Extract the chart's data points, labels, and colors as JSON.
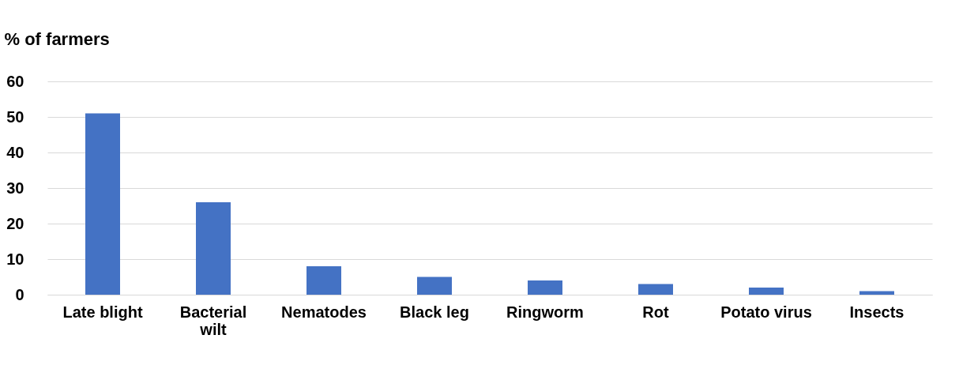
{
  "chart_data": {
    "type": "bar",
    "ylabel": "% of farmers",
    "categories": [
      "Late blight",
      "Bacterial wilt",
      "Nematodes",
      "Black leg",
      "Ringworm",
      "Rot",
      "Potato virus",
      "Insects"
    ],
    "values": [
      51,
      26,
      8,
      5,
      4,
      3,
      2,
      1
    ],
    "color": "#4472c4",
    "ylim": [
      0,
      60
    ],
    "yticks": [
      0,
      10,
      20,
      30,
      40,
      50,
      60
    ],
    "grid": "y"
  }
}
